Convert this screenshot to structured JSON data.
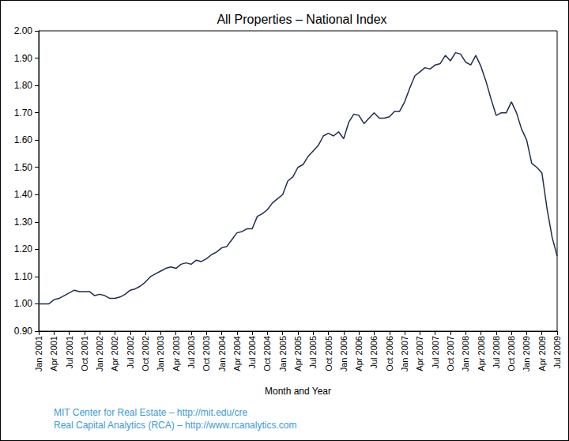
{
  "chart_data": {
    "type": "line",
    "title": "All Properties – National Index",
    "x_label": "Month and Year",
    "annotations": [
      "MIT Center for Real Estate – http://mit.edu/cre",
      "Real Capital Analytics (RCA) – http://www.rcanalytics.com"
    ],
    "categories": [
      "Jan 2001",
      null,
      null,
      "Apr 2001",
      null,
      null,
      "Jul 2001",
      null,
      null,
      "Oct 2001",
      null,
      null,
      "Jan 2002",
      null,
      null,
      "Apr 2002",
      null,
      null,
      "Jul 2002",
      null,
      null,
      "Oct 2002",
      null,
      null,
      "Jan 2003",
      null,
      null,
      "Apr 2003",
      null,
      null,
      "Jul 2003",
      null,
      null,
      "Oct 2003",
      null,
      null,
      "Jan 2004",
      null,
      null,
      "Apr 2004",
      null,
      null,
      "Jul 2004",
      null,
      null,
      "Oct 2004",
      null,
      null,
      "Jan 2005",
      null,
      null,
      "Apr 2005",
      null,
      null,
      "Jul 2005",
      null,
      null,
      "Oct 2005",
      null,
      null,
      "Jan 2006",
      null,
      null,
      "Apr 2006",
      null,
      null,
      "Jul 2006",
      null,
      null,
      "Oct 2006",
      null,
      null,
      "Jan 2007",
      null,
      null,
      "Apr 2007",
      null,
      null,
      "Jul 2007",
      null,
      null,
      "Oct 2007",
      null,
      null,
      "Jan 2008",
      null,
      null,
      "Apr 2008",
      null,
      null,
      "Jul 2008",
      null,
      null,
      "Oct 2008",
      null,
      null,
      "Jan 2009",
      null,
      null,
      "Apr 2009",
      null,
      null,
      "Jul 2009"
    ],
    "values": [
      1.0,
      1.0,
      1.0,
      1.015,
      1.02,
      1.03,
      1.04,
      1.05,
      1.045,
      1.045,
      1.045,
      1.03,
      1.035,
      1.03,
      1.02,
      1.02,
      1.025,
      1.035,
      1.05,
      1.055,
      1.065,
      1.08,
      1.1,
      1.11,
      1.12,
      1.13,
      1.135,
      1.13,
      1.145,
      1.15,
      1.145,
      1.16,
      1.155,
      1.165,
      1.18,
      1.19,
      1.205,
      1.21,
      1.235,
      1.26,
      1.265,
      1.275,
      1.275,
      1.32,
      1.33,
      1.345,
      1.37,
      1.385,
      1.4,
      1.45,
      1.465,
      1.5,
      1.51,
      1.54,
      1.56,
      1.58,
      1.615,
      1.625,
      1.615,
      1.63,
      1.605,
      1.665,
      1.695,
      1.69,
      1.66,
      1.68,
      1.7,
      1.68,
      1.68,
      1.685,
      1.705,
      1.705,
      1.74,
      1.79,
      1.835,
      1.85,
      1.865,
      1.86,
      1.875,
      1.88,
      1.91,
      1.89,
      1.92,
      1.915,
      1.885,
      1.875,
      1.91,
      1.87,
      1.815,
      1.75,
      1.69,
      1.7,
      1.7,
      1.74,
      1.7,
      1.64,
      1.6,
      1.515,
      1.5,
      1.48,
      1.35,
      1.245,
      1.175
    ],
    "color": "#1f2d4d",
    "ylim": [
      0.9,
      2.0
    ],
    "yticks": [
      {
        "value": 0.9,
        "label": "0.90"
      },
      {
        "value": 1.0,
        "label": "1.00"
      },
      {
        "value": 1.1,
        "label": "1.10"
      },
      {
        "value": 1.2,
        "label": "1.20"
      },
      {
        "value": 1.3,
        "label": "1.30"
      },
      {
        "value": 1.4,
        "label": "1.40"
      },
      {
        "value": 1.5,
        "label": "1.50"
      },
      {
        "value": 1.6,
        "label": "1.60"
      },
      {
        "value": 1.7,
        "label": "1.70"
      },
      {
        "value": 1.8,
        "label": "1.80"
      },
      {
        "value": 1.9,
        "label": "1.90"
      },
      {
        "value": 2.0,
        "label": "2.00"
      }
    ],
    "grid": false
  }
}
